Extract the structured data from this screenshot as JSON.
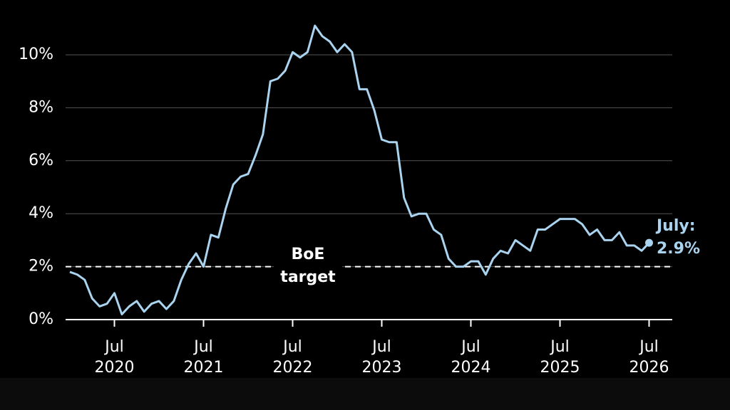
{
  "chart_data": {
    "type": "line",
    "x": [
      "2020-01",
      "2020-02",
      "2020-03",
      "2020-04",
      "2020-05",
      "2020-06",
      "2020-07",
      "2020-08",
      "2020-09",
      "2020-10",
      "2020-11",
      "2020-12",
      "2021-01",
      "2021-02",
      "2021-03",
      "2021-04",
      "2021-05",
      "2021-06",
      "2021-07",
      "2021-08",
      "2021-09",
      "2021-10",
      "2021-11",
      "2021-12",
      "2022-01",
      "2022-02",
      "2022-03",
      "2022-04",
      "2022-05",
      "2022-06",
      "2022-07",
      "2022-08",
      "2022-09",
      "2022-10",
      "2022-11",
      "2022-12",
      "2023-01",
      "2023-02",
      "2023-03",
      "2023-04",
      "2023-05",
      "2023-06",
      "2023-07",
      "2023-08",
      "2023-09",
      "2023-10",
      "2023-11",
      "2023-12",
      "2024-01",
      "2024-02",
      "2024-03",
      "2024-04",
      "2024-05",
      "2024-06",
      "2024-07",
      "2024-08",
      "2024-09",
      "2024-10",
      "2024-11",
      "2024-12",
      "2025-01",
      "2025-02",
      "2025-03",
      "2025-04",
      "2025-05",
      "2025-06",
      "2025-07",
      "2025-08",
      "2025-09",
      "2025-10",
      "2025-11",
      "2025-12",
      "2026-01",
      "2026-02",
      "2026-03",
      "2026-04",
      "2026-05",
      "2026-06",
      "2026-07"
    ],
    "series": [
      {
        "color": "#a9d3ef",
        "values": [
          1.8,
          1.7,
          1.5,
          0.8,
          0.5,
          0.6,
          1.0,
          0.2,
          0.5,
          0.7,
          0.3,
          0.6,
          0.7,
          0.4,
          0.7,
          1.5,
          2.1,
          2.5,
          2.0,
          3.2,
          3.1,
          4.2,
          5.1,
          5.4,
          5.5,
          6.2,
          7.0,
          9.0,
          9.1,
          9.4,
          10.1,
          9.9,
          10.1,
          11.1,
          10.7,
          10.5,
          10.1,
          10.4,
          10.1,
          8.7,
          8.7,
          7.9,
          6.8,
          6.7,
          6.7,
          4.6,
          3.9,
          4.0,
          4.0,
          3.4,
          3.2,
          2.3,
          2.0,
          2.0,
          2.2,
          2.2,
          1.7,
          2.3,
          2.6,
          2.5,
          3.0,
          2.8,
          2.6,
          3.4,
          3.4,
          3.6,
          3.8,
          3.8,
          3.8,
          3.6,
          3.2,
          3.4,
          3.0,
          3.0,
          3.3,
          2.8,
          2.8,
          2.6,
          2.9
        ]
      }
    ],
    "ylim": [
      0,
      11.5
    ],
    "yticks": [
      {
        "value": 0,
        "label": "0%"
      },
      {
        "value": 2,
        "label": "2%"
      },
      {
        "value": 4,
        "label": "4%"
      },
      {
        "value": 6,
        "label": "6%"
      },
      {
        "value": 8,
        "label": "8%"
      },
      {
        "value": 10,
        "label": "10%"
      }
    ],
    "xticks": [
      {
        "value": "2020-07",
        "label": [
          "Jul",
          "2020"
        ]
      },
      {
        "value": "2021-07",
        "label": [
          "Jul",
          "2021"
        ]
      },
      {
        "value": "2022-07",
        "label": [
          "Jul",
          "2022"
        ]
      },
      {
        "value": "2023-07",
        "label": [
          "Jul",
          "2023"
        ]
      },
      {
        "value": "2024-07",
        "label": [
          "Jul",
          "2024"
        ]
      },
      {
        "value": "2025-07",
        "label": [
          "Jul",
          "2025"
        ]
      },
      {
        "value": "2026-07",
        "label": [
          "Jul",
          "2026"
        ]
      }
    ],
    "grid": true,
    "target": {
      "value": 2,
      "label": [
        "BoE",
        "target"
      ]
    },
    "annotation": {
      "lines": [
        "July:",
        "2.9%"
      ]
    }
  }
}
